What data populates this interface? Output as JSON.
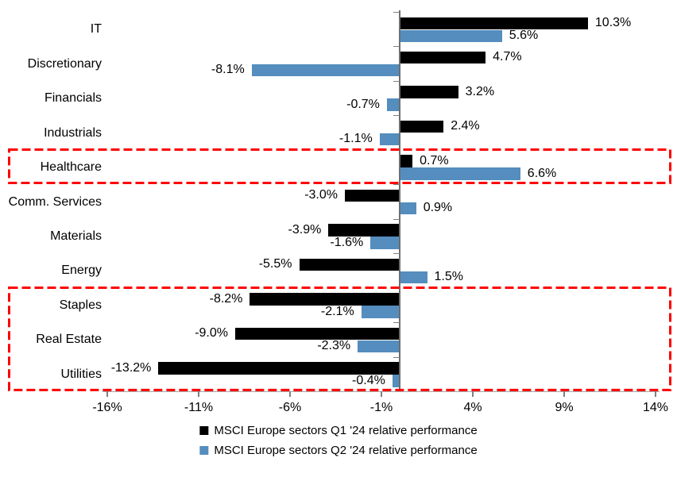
{
  "chart_data": {
    "type": "bar",
    "orientation": "horizontal",
    "title": "",
    "xlabel": "",
    "ylabel": "",
    "categories": [
      "IT",
      "Discretionary",
      "Financials",
      "Industrials",
      "Healthcare",
      "Comm. Services",
      "Materials",
      "Energy",
      "Staples",
      "Real Estate",
      "Utilities"
    ],
    "series": [
      {
        "name": "MSCI Europe sectors Q1 '24 relative performance",
        "color": "#000000",
        "values": [
          10.3,
          4.7,
          3.2,
          2.4,
          0.7,
          -3.0,
          -3.9,
          -5.5,
          -8.2,
          -9.0,
          -13.2
        ],
        "labels": [
          "10.3%",
          "4.7%",
          "3.2%",
          "2.4%",
          "0.7%",
          "-3.0%",
          "-3.9%",
          "-5.5%",
          "-8.2%",
          "-9.0%",
          "-13.2%"
        ]
      },
      {
        "name": "MSCI Europe sectors Q2 '24 relative performance",
        "color": "#548dbe",
        "values": [
          5.6,
          -8.1,
          -0.7,
          -1.1,
          6.6,
          0.9,
          -1.6,
          1.5,
          -2.1,
          -2.3,
          -0.4
        ],
        "labels": [
          "5.6%",
          "-8.1%",
          "-0.7%",
          "-1.1%",
          "6.6%",
          "0.9%",
          "-1.6%",
          "1.5%",
          "-2.1%",
          "-2.3%",
          "-0.4%"
        ]
      }
    ],
    "x_ticks": [
      -16,
      -11,
      -6,
      -1,
      4,
      9,
      14
    ],
    "x_tick_labels": [
      "-16%",
      "-11%",
      "-6%",
      "-1%",
      "4%",
      "9%",
      "14%"
    ],
    "xlim": [
      -16.3,
      14.8
    ],
    "grid": false,
    "data_labels": true,
    "legend_position": "bottom",
    "highlights": [
      {
        "categories": [
          "Healthcare"
        ],
        "color": "#ff0000",
        "style": "dashed"
      },
      {
        "categories": [
          "Staples",
          "Real Estate",
          "Utilities"
        ],
        "color": "#ff0000",
        "style": "dashed"
      }
    ]
  }
}
